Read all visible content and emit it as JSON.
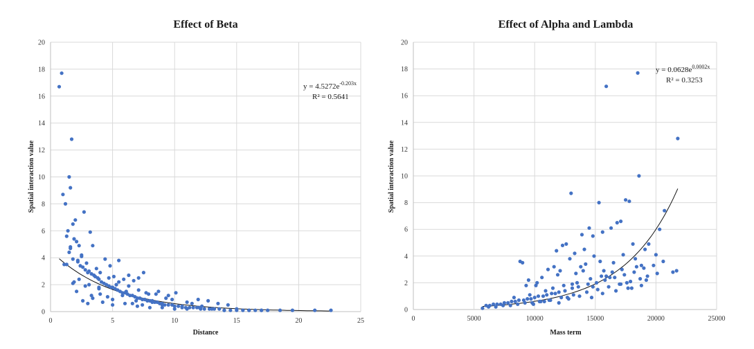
{
  "colors": {
    "point": "#4472c4",
    "trend": "#111111",
    "grid": "#d9d9d9"
  },
  "chart_data": [
    {
      "type": "scatter",
      "title": "Effect of Beta",
      "xlabel": "Distance",
      "ylabel": "Spatial interaction value",
      "xlim": [
        0,
        25
      ],
      "ylim": [
        0,
        20
      ],
      "xticks": [
        0,
        5,
        10,
        15,
        20,
        25
      ],
      "yticks": [
        0,
        2,
        4,
        6,
        8,
        10,
        12,
        14,
        16,
        18,
        20
      ],
      "trendline": {
        "type": "exponential",
        "a": 4.5272,
        "b": -0.203,
        "equation_prefix": "y = 4.5272e",
        "equation_exp": "-0.203x",
        "r2": "R² = 0.5641"
      },
      "series": [
        {
          "x": [
            0.7,
            0.9,
            1.7,
            1.5,
            1.6,
            1.0,
            1.2,
            2.7,
            2.0,
            1.8,
            1.4,
            3.2,
            1.3,
            1.9,
            2.1,
            2.3,
            1.6,
            1.5,
            2.5,
            1.1,
            1.8,
            2.2,
            2.4,
            2.6,
            2.8,
            3.0,
            3.1,
            3.3,
            3.5,
            3.6,
            3.8,
            3.9,
            4.1,
            4.3,
            4.5,
            4.7,
            4.9,
            5.0,
            5.2,
            5.4,
            5.6,
            5.8,
            6.0,
            6.2,
            6.4,
            6.6,
            6.8,
            7.0,
            7.2,
            7.4,
            7.6,
            7.8,
            8.0,
            8.2,
            8.4,
            8.6,
            8.8,
            9.0,
            9.2,
            9.5,
            9.8,
            10.0,
            10.3,
            10.6,
            10.9,
            11.2,
            11.5,
            11.8,
            12.1,
            12.4,
            12.8,
            13.2,
            13.6,
            14.0,
            14.5,
            15.0,
            15.5,
            16.0,
            16.5,
            17.0,
            17.5,
            18.5,
            19.5,
            21.3,
            22.6,
            1.3,
            1.6,
            1.9,
            2.2,
            2.5,
            2.9,
            3.4,
            3.7,
            4.0,
            4.4,
            4.8,
            5.1,
            5.5,
            5.9,
            6.3,
            6.7,
            7.1,
            7.5,
            2.1,
            2.8,
            3.3,
            3.9,
            4.6,
            5.3,
            6.1,
            6.9,
            7.7,
            8.5,
            9.3,
            10.1,
            11.0,
            11.9,
            12.7,
            13.5,
            14.3,
            1.8,
            2.6,
            3.4,
            4.2,
            5.0,
            5.8,
            6.6,
            7.4,
            8.2,
            9.0,
            9.8,
            10.6,
            11.4,
            12.2,
            2.3,
            3.1,
            3.9,
            4.7,
            5.5,
            6.3,
            7.1,
            7.9,
            8.7,
            9.5,
            3.0,
            4.0,
            5.0,
            6.0,
            7.0,
            8.0,
            9.0,
            10.0,
            11.0,
            12.0,
            13.0,
            14.0,
            15.0,
            16.0,
            17.0
          ],
          "y": [
            16.7,
            17.7,
            12.8,
            10.0,
            9.2,
            8.7,
            8.0,
            7.4,
            6.8,
            6.5,
            6.0,
            5.9,
            5.6,
            5.4,
            5.2,
            4.9,
            4.7,
            4.4,
            4.2,
            3.5,
            3.9,
            3.7,
            3.4,
            3.3,
            3.1,
            2.9,
            3.0,
            2.8,
            2.7,
            2.6,
            2.5,
            2.4,
            2.2,
            2.1,
            2.0,
            1.9,
            1.8,
            1.8,
            1.7,
            1.6,
            1.5,
            1.4,
            1.4,
            1.3,
            1.2,
            1.2,
            1.1,
            1.0,
            1.0,
            0.9,
            0.9,
            0.8,
            0.8,
            0.7,
            0.7,
            0.7,
            0.6,
            0.6,
            0.5,
            0.5,
            0.5,
            0.4,
            0.4,
            0.4,
            0.3,
            0.3,
            0.3,
            0.3,
            0.2,
            0.2,
            0.2,
            0.2,
            0.2,
            0.1,
            0.1,
            0.1,
            0.1,
            0.1,
            0.1,
            0.1,
            0.1,
            0.1,
            0.1,
            0.1,
            0.1,
            3.5,
            4.8,
            2.2,
            3.8,
            4.1,
            3.6,
            4.9,
            3.2,
            2.9,
            3.9,
            3.4,
            2.6,
            3.8,
            2.4,
            2.7,
            2.3,
            2.5,
            2.9,
            1.5,
            1.9,
            1.2,
            1.7,
            1.1,
            2.0,
            1.5,
            0.8,
            1.4,
            1.3,
            1.0,
            1.4,
            0.7,
            0.9,
            0.8,
            0.6,
            0.5,
            2.1,
            0.8,
            1.0,
            0.7,
            0.9,
            1.2,
            0.6,
            0.5,
            0.8,
            0.5,
            0.9,
            0.3,
            0.6,
            0.4,
            2.4,
            2.0,
            1.8,
            2.5,
            2.2,
            1.9,
            1.6,
            1.3,
            1.5,
            1.2,
            0.6,
            1.3,
            0.5,
            0.6,
            0.4,
            0.3,
            0.3,
            0.2,
            0.2,
            0.3,
            0.2,
            0.1,
            0.2,
            0.1,
            0.1
          ]
        }
      ]
    },
    {
      "type": "scatter",
      "title": "Effect of Alpha and Lambda",
      "xlabel": "Mass term",
      "ylabel": "Spatial interaction value",
      "xlim": [
        0,
        25000
      ],
      "ylim": [
        0,
        20
      ],
      "xticks": [
        0,
        5000,
        10000,
        15000,
        20000,
        25000
      ],
      "yticks": [
        0,
        2,
        4,
        6,
        8,
        10,
        12,
        14,
        16,
        18,
        20
      ],
      "trendline": {
        "type": "exponential",
        "a": 0.0628,
        "b": 0.000228,
        "equation_prefix": "y = 0.0628e",
        "equation_exp": "0.0002x",
        "r2": "R² = 0.3253"
      },
      "series": [
        {
          "x": [
            18500,
            15900,
            21800,
            18600,
            13000,
            17500,
            17800,
            20700,
            20300,
            15300,
            14800,
            14500,
            16300,
            15600,
            13900,
            12600,
            17100,
            16800,
            18100,
            19100,
            18800,
            14100,
            13300,
            11800,
            12300,
            9000,
            8800,
            9500,
            10100,
            10600,
            11100,
            11600,
            12100,
            12900,
            13400,
            14200,
            14900,
            15700,
            16500,
            17300,
            18300,
            19400,
            20000,
            21700,
            21400,
            6000,
            6300,
            6600,
            6900,
            7200,
            7500,
            7800,
            8100,
            8400,
            8700,
            9100,
            9400,
            9700,
            10000,
            10300,
            10700,
            11000,
            11400,
            11700,
            12000,
            12500,
            13100,
            13600,
            14400,
            15100,
            15800,
            16600,
            17400,
            18200,
            19000,
            19800,
            20600,
            9800,
            10400,
            11200,
            12200,
            13200,
            14300,
            15200,
            16100,
            17000,
            17900,
            18700,
            19300,
            20100,
            10900,
            11500,
            12400,
            13500,
            14600,
            15500,
            16400,
            17200,
            18400,
            19200,
            5700,
            6200,
            6800,
            7400,
            8000,
            8600,
            9200,
            9900,
            10500,
            11300,
            12000,
            12800,
            13700,
            14700,
            15600,
            16700,
            17700,
            18800,
            9300,
            10200,
            11900,
            13800,
            14000,
            15400,
            16200,
            17600,
            8300,
            9600,
            10800,
            12700,
            13100,
            14800,
            15900,
            17100,
            18000
          ],
          "y": [
            17.7,
            16.7,
            12.8,
            10.0,
            8.7,
            8.2,
            8.1,
            7.4,
            6.0,
            8.0,
            5.5,
            6.1,
            6.1,
            5.8,
            5.6,
            4.9,
            6.6,
            6.5,
            4.9,
            4.5,
            3.3,
            4.5,
            4.2,
            4.4,
            4.8,
            3.5,
            3.6,
            2.2,
            1.8,
            2.4,
            3.0,
            3.2,
            2.9,
            3.8,
            2.7,
            3.4,
            4.0,
            2.9,
            3.5,
            4.1,
            3.8,
            4.9,
            4.1,
            2.9,
            2.8,
            0.3,
            0.3,
            0.4,
            0.4,
            0.4,
            0.5,
            0.5,
            0.6,
            0.6,
            0.7,
            0.7,
            0.8,
            0.8,
            0.9,
            1.0,
            1.0,
            1.1,
            1.2,
            1.2,
            1.3,
            1.4,
            1.6,
            1.7,
            1.9,
            2.0,
            2.2,
            2.4,
            2.6,
            2.8,
            3.1,
            3.3,
            3.6,
            0.5,
            0.6,
            0.7,
            0.9,
            1.1,
            1.3,
            1.5,
            1.7,
            1.9,
            2.1,
            2.3,
            2.5,
            2.7,
            1.4,
            1.6,
            1.8,
            2.0,
            2.3,
            2.5,
            2.8,
            3.0,
            3.2,
            2.2,
            0.1,
            0.2,
            0.2,
            0.3,
            0.3,
            0.4,
            0.5,
            0.4,
            0.6,
            0.7,
            0.5,
            0.8,
            1.0,
            0.9,
            1.2,
            1.4,
            1.6,
            1.8,
            1.8,
            2.0,
            2.6,
            3.2,
            2.9,
            3.6,
            2.4,
            2.0,
            0.9,
            1.1,
            0.6,
            0.9,
            1.9,
            1.7,
            2.5,
            1.9,
            1.6
          ]
        }
      ]
    }
  ]
}
